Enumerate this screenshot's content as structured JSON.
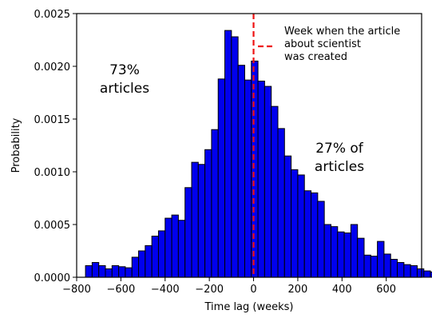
{
  "chart_data": {
    "type": "histogram",
    "xlabel": "Time lag (weeks)",
    "ylabel": "Probability",
    "xlim": [
      -800,
      760
    ],
    "ylim": [
      0,
      0.0025
    ],
    "xticks": [
      -800,
      -600,
      -400,
      -200,
      0,
      200,
      400,
      600
    ],
    "yticks": [
      0,
      0.0005,
      0.001,
      0.0015,
      0.002,
      0.0025
    ],
    "xtick_labels": [
      "−800",
      "−600",
      "−400",
      "−200",
      "0",
      "200",
      "400",
      "600"
    ],
    "ytick_labels": [
      "0.0000",
      "0.0005",
      "0.0010",
      "0.0015",
      "0.0020",
      "0.0025"
    ],
    "bin_start": -760,
    "bin_width": 30,
    "values": [
      0.00011,
      0.00014,
      0.00011,
      8e-05,
      0.00011,
      0.0001,
      9e-05,
      0.00019,
      0.00025,
      0.0003,
      0.00039,
      0.00044,
      0.00056,
      0.00059,
      0.00054,
      0.00085,
      0.00109,
      0.00107,
      0.00121,
      0.0014,
      0.00188,
      0.00234,
      0.00228,
      0.00201,
      0.00187,
      0.00205,
      0.00186,
      0.00181,
      0.00162,
      0.00141,
      0.00115,
      0.00102,
      0.00097,
      0.00082,
      0.0008,
      0.00072,
      0.0005,
      0.00048,
      0.00043,
      0.00042,
      0.0005,
      0.00037,
      0.00021,
      0.0002,
      0.00034,
      0.00022,
      0.00017,
      0.00014,
      0.00012,
      0.00011,
      8e-05,
      6e-05,
      5e-05,
      2e-05,
      1e-05,
      3e-05
    ],
    "bar_color": "#0000ee",
    "bar_edge_color": "#000000",
    "reference_line": {
      "x": 0,
      "color": "#ee1111",
      "style": "dashed",
      "label": "Week when the article\nabout scientist\nwas created"
    },
    "annotations": [
      {
        "text": "73%\narticles"
      },
      {
        "text": "27% of\narticles"
      }
    ],
    "legend_placement": "top-right",
    "grid": false
  }
}
